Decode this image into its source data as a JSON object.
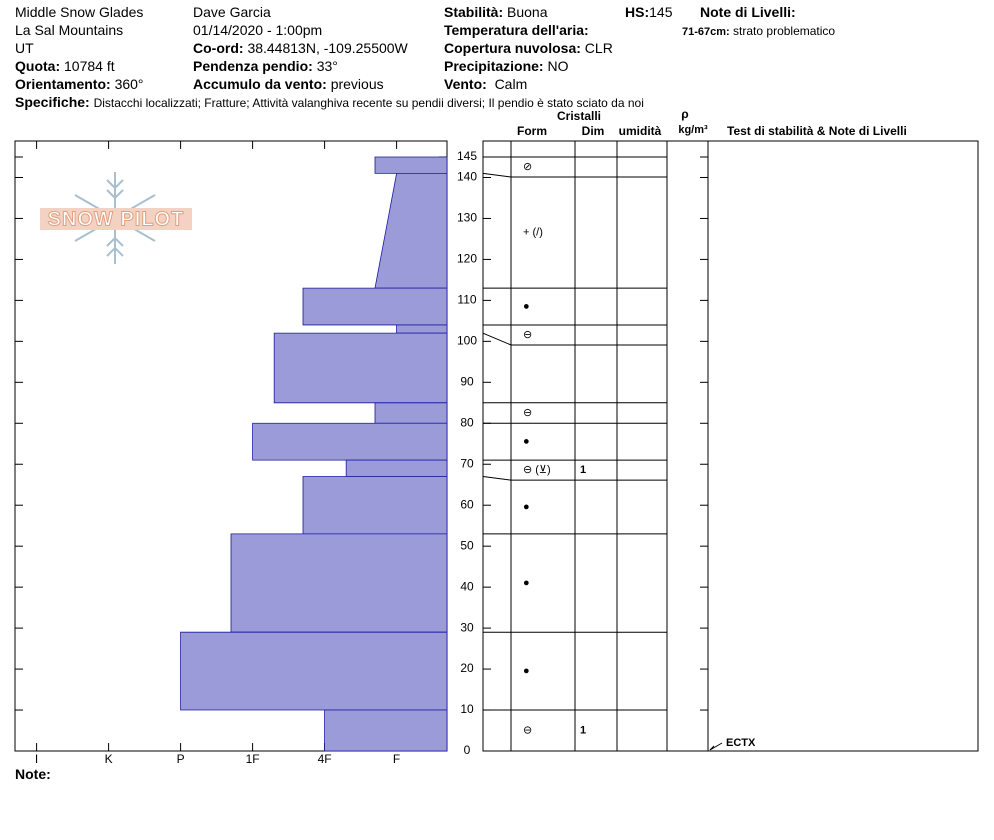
{
  "header": {
    "site": "Middle Snow Glades",
    "range": "La Sal Mountains",
    "state": "UT",
    "elevation_label": "Quota:",
    "elevation": "10784 ft",
    "aspect_label": "Orientamento:",
    "aspect": "360°",
    "observer": "Dave Garcia",
    "datetime": "01/14/2020 - 1:00pm",
    "coord_label": "Co-ord:",
    "coord": "38.44813N, -109.25500W",
    "slope_label": "Pendenza pendio:",
    "slope": "33°",
    "wind_loading_label": "Accumulo da vento:",
    "wind_loading": "previous",
    "stability_label": "Stabilità:",
    "stability": "Buona",
    "hs_label": "HS:",
    "hs": 145,
    "layer_notes_label": "Note di Livelli:",
    "air_temp_label": "Temperatura dell'aria:",
    "layer_note_range": "71-67cm:",
    "layer_note": "strato problematico",
    "sky_label": "Copertura nuvolosa:",
    "sky": "CLR",
    "precip_label": "Precipitazione:",
    "precip": "NO",
    "wind_label": "Vento:",
    "wind": "Calm",
    "specifics_label": "Specifiche:",
    "specifics": "Distacchi localizzati;  Fratture;  Attività valanghiva recente su pendii diversi;  Il pendio è stato sciato da noi"
  },
  "chart_data": {
    "type": "profile",
    "logo": "SNOW PILOT",
    "columns": {
      "crystals": "Cristalli",
      "form": "Form",
      "size": "Dim",
      "moisture": "umidità",
      "density": "ρ",
      "density_unit": "kg/m³",
      "tests": "Test di stabilità & Note di Livelli"
    },
    "ylim": [
      0,
      145
    ],
    "yticks": [
      0,
      10,
      20,
      30,
      40,
      50,
      60,
      70,
      80,
      90,
      100,
      110,
      120,
      130,
      140,
      145
    ],
    "xlim": [
      6.3,
      0.3
    ],
    "xticks": [
      {
        "value": 6,
        "label": "I"
      },
      {
        "value": 5,
        "label": "K"
      },
      {
        "value": 4,
        "label": "P"
      },
      {
        "value": 3,
        "label": "1F"
      },
      {
        "value": 2,
        "label": "4F"
      },
      {
        "value": 1,
        "label": "F"
      }
    ],
    "color": "#9b9bd9",
    "layers": {
      "top": [
        145,
        141,
        113,
        104,
        102,
        85,
        80,
        71,
        67,
        53,
        29,
        10
      ],
      "bottom": [
        141,
        113,
        104,
        102,
        85,
        80,
        71,
        67,
        53,
        29,
        10,
        0
      ],
      "hardness_top": [
        1.3,
        1,
        2.3,
        1,
        2.7,
        1.3,
        3,
        1.7,
        2.3,
        3.3,
        4,
        2
      ],
      "hardness_bottom": [
        1.3,
        1.3,
        2.3,
        1,
        2.7,
        1.3,
        3,
        1.7,
        2.3,
        3.3,
        4,
        2
      ],
      "forms": [
        "⊘",
        "+ (/)",
        "●",
        "⊖",
        null,
        "⊖",
        "●",
        "⊖ (⊻)",
        "●",
        "●",
        "●",
        "⊖"
      ],
      "sizes": [
        null,
        null,
        null,
        null,
        null,
        null,
        null,
        1,
        null,
        null,
        null,
        1
      ]
    },
    "tests": {
      "labels": [
        "ECTX"
      ],
      "heights": [
        0
      ]
    }
  },
  "footer": {
    "note_label": "Note:"
  }
}
